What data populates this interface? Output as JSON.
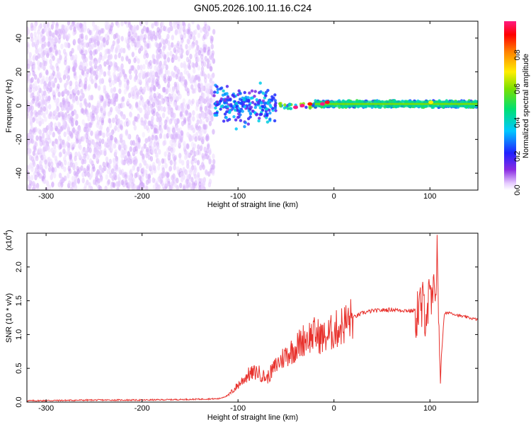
{
  "figure": {
    "title": "GN05.2026.100.11.16.C24",
    "colors": {
      "axis": "#000000",
      "snr_line": "#e8322d",
      "spectral_low": "#8a2be2",
      "spectral_high": "#ff0044"
    }
  },
  "chart_data": [
    {
      "type": "heatmap",
      "title": "GN05.2026.100.11.16.C24",
      "xlabel": "Height of straight line (km)",
      "ylabel": "Frequency (Hz)",
      "xlim": [
        -320,
        150
      ],
      "ylim": [
        -50,
        50
      ],
      "xticks": [
        -300,
        -200,
        -100,
        0,
        100
      ],
      "xtick_labels": [
        "-300",
        "-200",
        "-100",
        "0",
        "100"
      ],
      "yticks": [
        -40,
        -20,
        0,
        20,
        40
      ],
      "ytick_labels": [
        "-40",
        "-20",
        "0",
        "20",
        "40"
      ],
      "colorbar": {
        "label": "Normalized spectral amplitude",
        "range": [
          0.0,
          1.0
        ],
        "ticks": [
          0.0,
          0.2,
          0.4,
          0.6,
          0.8
        ],
        "tick_labels": [
          "0.0",
          "0.2",
          "0.4",
          "0.6",
          "0.8"
        ],
        "colormap": "rainbow (violet-blue-cyan-green-yellow-orange-red-magenta)"
      },
      "features": [
        {
          "x_range": [
            -320,
            -125
          ],
          "freq_range": [
            -50,
            50
          ],
          "amplitude": 0.05,
          "description": "diffuse low-amplitude noise"
        },
        {
          "x_range": [
            -125,
            -60
          ],
          "freq_range": [
            -15,
            15
          ],
          "amplitude": 0.3
        },
        {
          "x_range": [
            -60,
            -20
          ],
          "freq_range": [
            -3,
            3
          ],
          "amplitude": 0.5
        },
        {
          "x_range": [
            -20,
            150
          ],
          "freq_center": 1,
          "freq_width": 4,
          "amplitude": 0.45,
          "description": "narrow band near 1 Hz"
        }
      ],
      "peaks": [
        {
          "x": -40,
          "y": -1,
          "amplitude": 1.0
        },
        {
          "x": -33,
          "y": 0,
          "amplitude": 1.0
        },
        {
          "x": -25,
          "y": 1,
          "amplitude": 0.9
        },
        {
          "x": -12,
          "y": 1,
          "amplitude": 1.0
        },
        {
          "x": -7,
          "y": 2,
          "amplitude": 0.95
        },
        {
          "x": 101,
          "y": 2,
          "amplitude": 0.7
        }
      ]
    },
    {
      "type": "line",
      "xlabel": "Height of straight line (km)",
      "ylabel": "SNR (10 * v/v)",
      "multiplier_label": "(x10",
      "multiplier_exponent": "4",
      "xlim": [
        -320,
        150
      ],
      "ylim": [
        0,
        2.5
      ],
      "xticks": [
        -300,
        -200,
        -100,
        0,
        100
      ],
      "xtick_labels": [
        "-300",
        "-200",
        "-100",
        "0",
        "100"
      ],
      "yticks": [
        0.0,
        0.5,
        1.0,
        1.5,
        2.0
      ],
      "ytick_labels": [
        "0.0",
        "0.5",
        "1.0",
        "1.5",
        "2.0"
      ],
      "series": [
        {
          "x": [
            -320,
            -250,
            -200,
            -150,
            -120,
            -110,
            -100,
            -90,
            -80,
            -70,
            -60,
            -50,
            -40,
            -30,
            -20,
            -10,
            0,
            10,
            20,
            30,
            40,
            50,
            60,
            70,
            80,
            90,
            95,
            100,
            105,
            108,
            110,
            115,
            120,
            130,
            140,
            150
          ],
          "y": [
            0.02,
            0.03,
            0.03,
            0.04,
            0.05,
            0.1,
            0.25,
            0.4,
            0.45,
            0.35,
            0.55,
            0.7,
            0.8,
            0.95,
            1.0,
            0.95,
            1.05,
            1.15,
            1.25,
            1.32,
            1.35,
            1.36,
            1.37,
            1.36,
            1.35,
            1.36,
            1.4,
            1.45,
            1.5,
            2.4,
            0.3,
            1.3,
            1.33,
            1.28,
            1.25,
            1.22
          ]
        }
      ]
    }
  ]
}
